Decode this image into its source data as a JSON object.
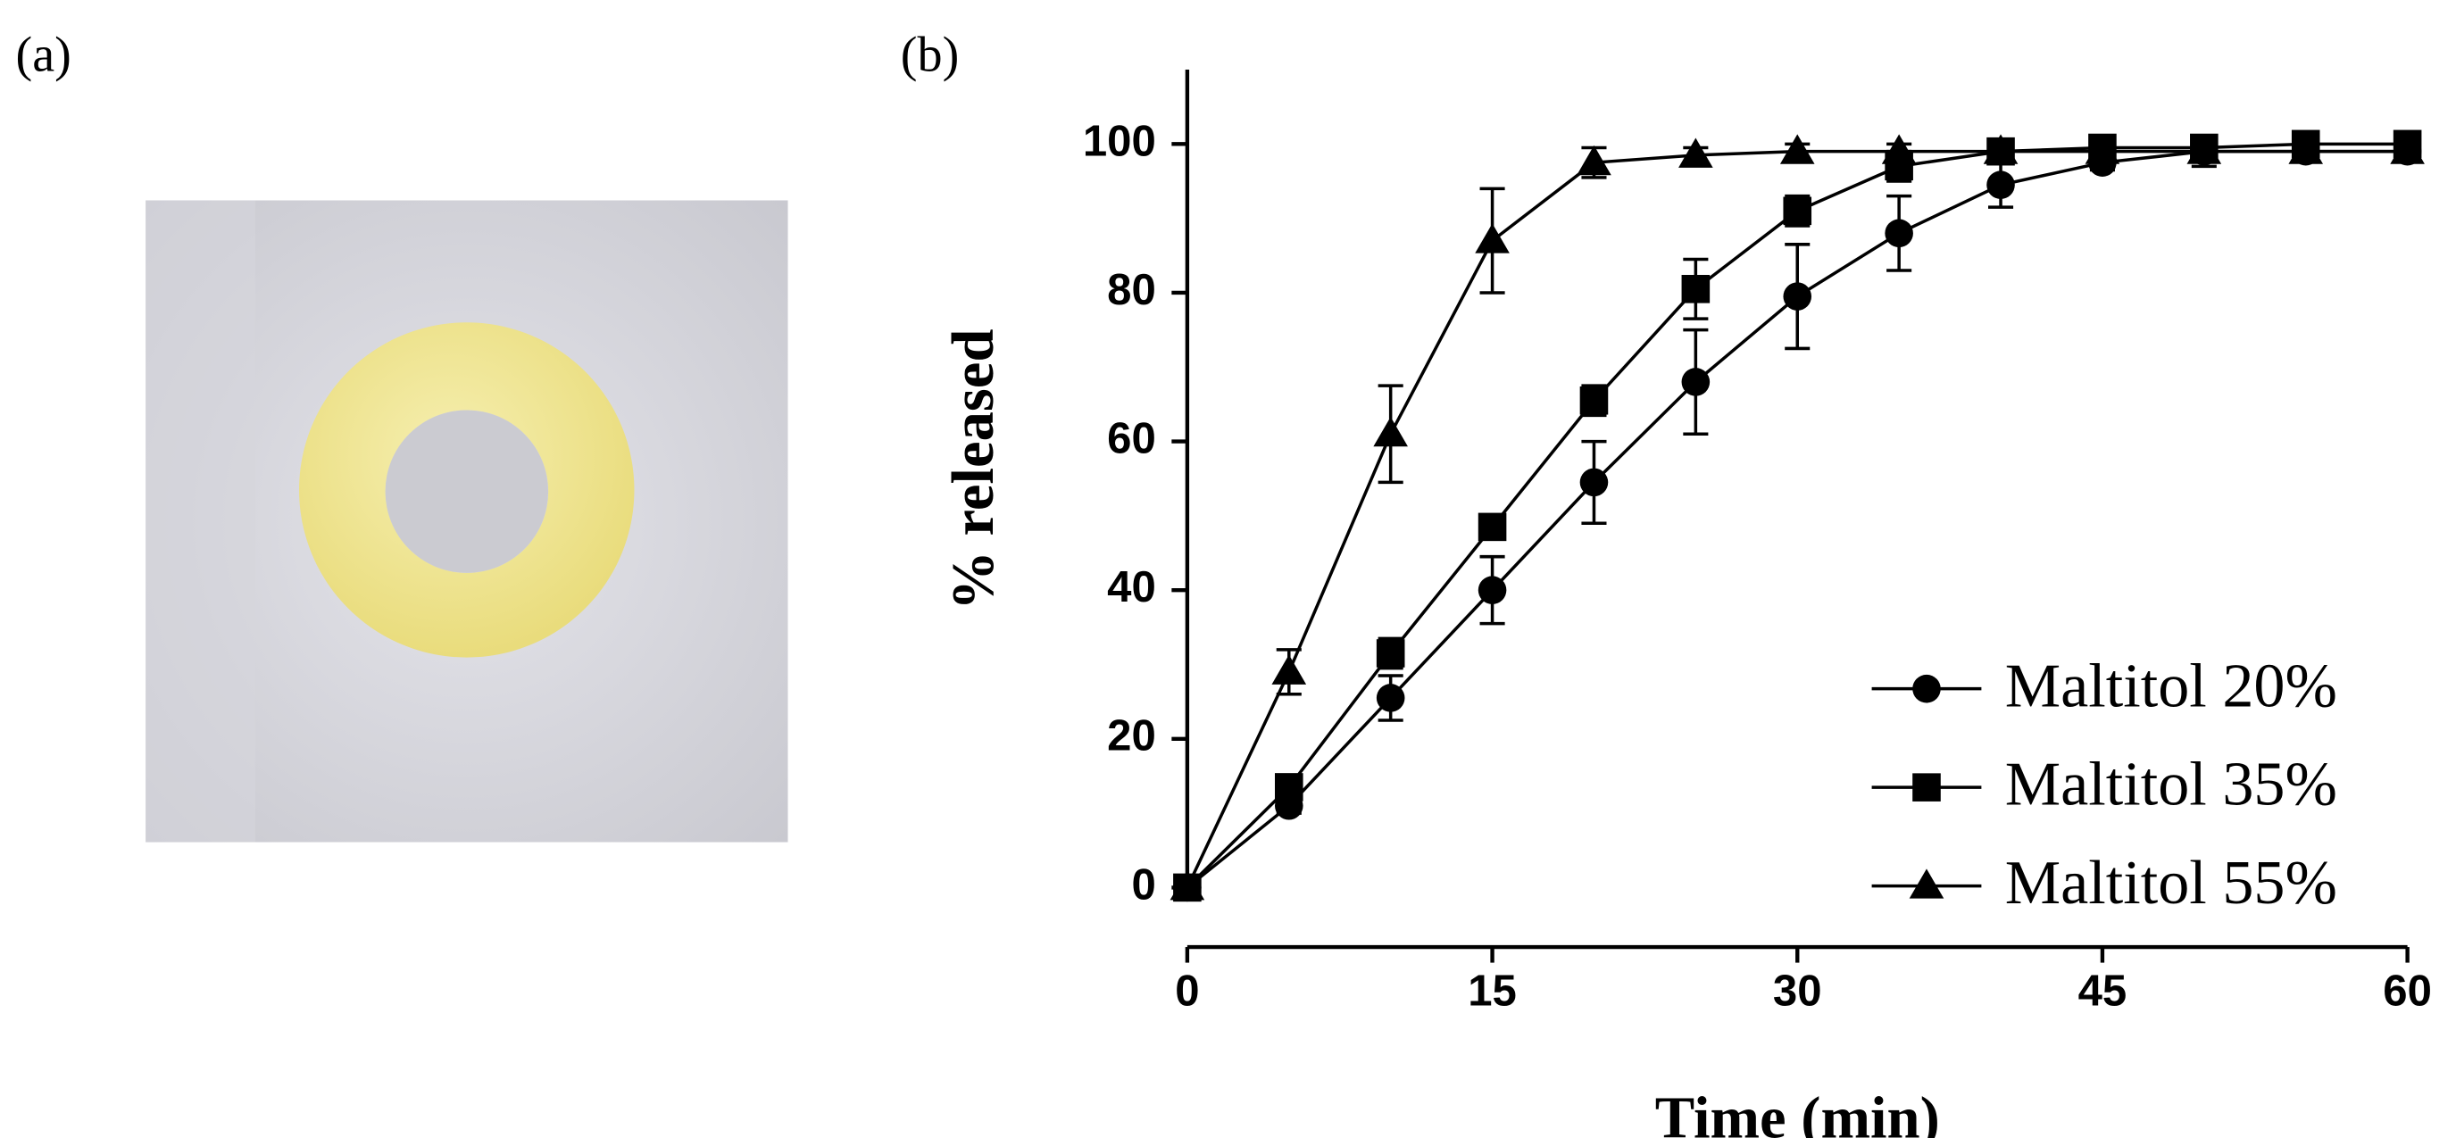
{
  "panel_labels": [
    "(a)",
    "(b)"
  ],
  "chart_data": {
    "type": "line",
    "x_label": "Time (min)",
    "y_label": "% released",
    "x": [
      0,
      5,
      10,
      15,
      20,
      25,
      30,
      35,
      40,
      45,
      50,
      55,
      60
    ],
    "xlim": [
      0,
      60
    ],
    "xticks": [
      0,
      15,
      30,
      45,
      60
    ],
    "ylim": [
      0,
      110
    ],
    "yticks": [
      0,
      20,
      40,
      60,
      80,
      100
    ],
    "legend": "right",
    "series": [
      {
        "name": "Maltitol 20%",
        "color": "#000000",
        "marker": "circle",
        "values": [
          0,
          11,
          25.5,
          40,
          54.5,
          68,
          79.5,
          88,
          94.5,
          97.5,
          99,
          99,
          99
        ],
        "errors": [
          0,
          1,
          3,
          4.5,
          5.5,
          7,
          7,
          5,
          3,
          1,
          2,
          1,
          1
        ]
      },
      {
        "name": "Maltitol 35%",
        "color": "#000000",
        "marker": "square",
        "values": [
          0,
          13.5,
          31.5,
          48.5,
          65.5,
          80.5,
          91,
          97,
          99,
          99.5,
          99.5,
          100,
          100
        ],
        "errors": [
          0,
          1,
          2,
          1.5,
          2,
          4,
          2,
          2,
          1,
          1,
          1,
          1,
          1
        ]
      },
      {
        "name": "Maltitol 55%",
        "color": "#000000",
        "marker": "triangle",
        "values": [
          0,
          29,
          61,
          87,
          97.5,
          98.5,
          99,
          99,
          99,
          99,
          99,
          99,
          99
        ],
        "errors": [
          0,
          3,
          6.5,
          7,
          2,
          1,
          1,
          1,
          1,
          1,
          1,
          1,
          1
        ]
      }
    ]
  }
}
